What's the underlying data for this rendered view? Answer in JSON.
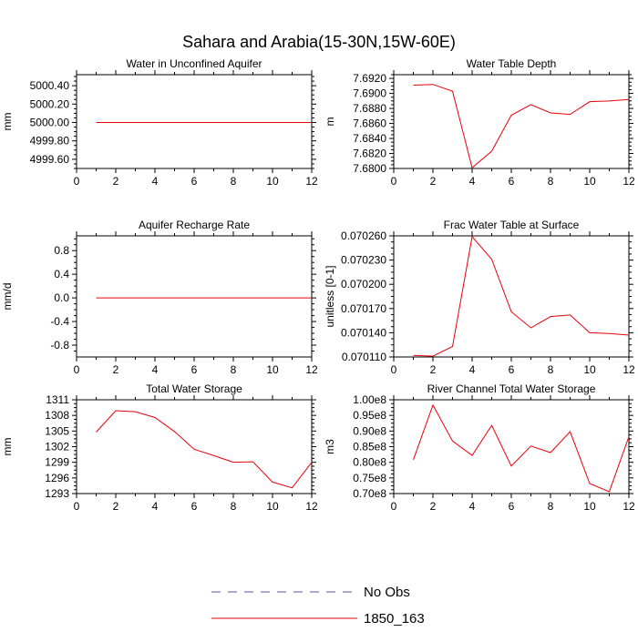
{
  "figure_title": "Sahara and Arabia(15-30N,15W-60E)",
  "legend": {
    "entries": [
      {
        "label": "No Obs",
        "color": "#5555aa",
        "dash": true
      },
      {
        "label": "1850_163",
        "color": "#e8000b",
        "dash": false
      }
    ]
  },
  "chart_data": [
    {
      "type": "line",
      "title": "Water in Unconfined Aquifer",
      "ylabel": "mm",
      "xlim": [
        0,
        12
      ],
      "ylim": [
        4999.5,
        5000.52
      ],
      "xticks": [
        0,
        2,
        4,
        6,
        8,
        10,
        12
      ],
      "yticks": [
        4999.6,
        4999.8,
        5000.0,
        5000.2,
        5000.4
      ],
      "ytick_labels": [
        "4999.60",
        "4999.80",
        "5000.00",
        "5000.20",
        "5000.40"
      ],
      "series": [
        {
          "color": "#e8000b",
          "x": [
            1,
            2,
            3,
            4,
            5,
            6,
            7,
            8,
            9,
            10,
            11,
            12
          ],
          "values": [
            5000,
            5000,
            5000,
            5000,
            5000,
            5000,
            5000,
            5000,
            5000,
            5000,
            5000,
            5000
          ]
        }
      ]
    },
    {
      "type": "line",
      "title": "Water Table Depth",
      "ylabel": "m",
      "xlim": [
        0,
        12
      ],
      "ylim": [
        7.68,
        7.6925
      ],
      "xticks": [
        0,
        2,
        4,
        6,
        8,
        10,
        12
      ],
      "yticks": [
        7.68,
        7.682,
        7.684,
        7.686,
        7.688,
        7.69,
        7.692
      ],
      "ytick_labels": [
        "7.6800",
        "7.6820",
        "7.6840",
        "7.6860",
        "7.6880",
        "7.6900",
        "7.6920"
      ],
      "series": [
        {
          "color": "#e8000b",
          "x": [
            1,
            2,
            3,
            4,
            5,
            6,
            7,
            8,
            9,
            10,
            11,
            12
          ],
          "values": [
            7.6911,
            7.6912,
            7.6903,
            7.6801,
            7.6823,
            7.6871,
            7.6885,
            7.6874,
            7.6872,
            7.6889,
            7.689,
            7.6892
          ]
        }
      ]
    },
    {
      "type": "line",
      "title": "Aquifer Recharge Rate",
      "ylabel": "mm/d",
      "xlim": [
        0,
        12
      ],
      "ylim": [
        -1.0,
        1.05
      ],
      "xticks": [
        0,
        2,
        4,
        6,
        8,
        10,
        12
      ],
      "yticks": [
        -0.8,
        -0.4,
        0.0,
        0.4,
        0.8
      ],
      "ytick_labels": [
        "-0.8",
        "-0.4",
        "0.0",
        "0.4",
        "0.8"
      ],
      "series": [
        {
          "color": "#e8000b",
          "x": [
            1,
            2,
            3,
            4,
            5,
            6,
            7,
            8,
            9,
            10,
            11,
            12
          ],
          "values": [
            0,
            0,
            0,
            0,
            0,
            0,
            0,
            0,
            0,
            0,
            0,
            0
          ]
        }
      ]
    },
    {
      "type": "line",
      "title": "Frac Water Table at Surface",
      "ylabel": "unitless [0-1]",
      "xlim": [
        0,
        12
      ],
      "ylim": [
        0.07011,
        0.07026
      ],
      "xticks": [
        0,
        2,
        4,
        6,
        8,
        10,
        12
      ],
      "yticks": [
        0.07011,
        0.07014,
        0.07017,
        0.0702,
        0.07023,
        0.07026
      ],
      "ytick_labels": [
        "0.070110",
        "0.070140",
        "0.070170",
        "0.070200",
        "0.070230",
        "0.070260"
      ],
      "series": [
        {
          "color": "#e8000b",
          "x": [
            1,
            2,
            3,
            4,
            5,
            6,
            7,
            8,
            9,
            10,
            11,
            12
          ],
          "values": [
            0.070112,
            0.070111,
            0.070123,
            0.070259,
            0.070231,
            0.070166,
            0.070146,
            0.07016,
            0.070162,
            0.07014,
            0.070139,
            0.070137
          ]
        }
      ]
    },
    {
      "type": "line",
      "title": "Total Water Storage",
      "ylabel": "mm",
      "xlim": [
        0,
        12
      ],
      "ylim": [
        1293,
        1311
      ],
      "xticks": [
        0,
        2,
        4,
        6,
        8,
        10,
        12
      ],
      "yticks": [
        1293,
        1296,
        1299,
        1302,
        1305,
        1308,
        1311
      ],
      "ytick_labels": [
        "1293",
        "1296",
        "1299",
        "1302",
        "1305",
        "1308",
        "1311"
      ],
      "series": [
        {
          "color": "#e8000b",
          "x": [
            1,
            2,
            3,
            4,
            5,
            6,
            7,
            8,
            9,
            10,
            11,
            12
          ],
          "values": [
            1304.8,
            1308.9,
            1308.7,
            1307.6,
            1304.9,
            1301.5,
            1300.3,
            1299.0,
            1299.1,
            1295.2,
            1294.1,
            1299.0
          ]
        }
      ]
    },
    {
      "type": "line",
      "title": "River Channel Total Water Storage",
      "ylabel": "m3",
      "xlim": [
        0,
        12
      ],
      "ylim": [
        70000000.0,
        100000000.0
      ],
      "xticks": [
        0,
        2,
        4,
        6,
        8,
        10,
        12
      ],
      "yticks": [
        70000000.0,
        75000000.0,
        80000000.0,
        85000000.0,
        90000000.0,
        95000000.0,
        100000000.0
      ],
      "ytick_labels": [
        "0.70e8",
        "0.75e8",
        "0.80e8",
        "0.85e8",
        "0.90e8",
        "0.95e8",
        "1.00e8"
      ],
      "series": [
        {
          "color": "#e8000b",
          "x": [
            1,
            2,
            3,
            4,
            5,
            6,
            7,
            8,
            9,
            10,
            11,
            12
          ],
          "values": [
            80800000.0,
            98300000.0,
            86800000.0,
            82200000.0,
            91800000.0,
            78800000.0,
            85200000.0,
            83100000.0,
            89800000.0,
            73200000.0,
            70600000.0,
            88200000.0
          ]
        }
      ]
    }
  ]
}
